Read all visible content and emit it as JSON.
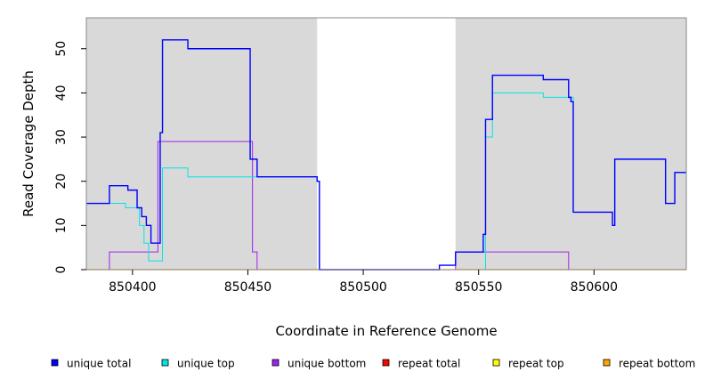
{
  "chart_data": {
    "type": "line",
    "line_style": "step",
    "xlabel": "Coordinate in Reference Genome",
    "ylabel": "Read Coverage Depth",
    "xlim": [
      850380,
      850640
    ],
    "ylim": [
      0,
      57
    ],
    "x_ticks": [
      850400,
      850450,
      850500,
      850550,
      850600
    ],
    "y_ticks": [
      0,
      10,
      20,
      30,
      40,
      50
    ],
    "grid": false,
    "plot_background": "#d9d9d9",
    "highlight_background": "#ffffff",
    "highlight_range": [
      850480,
      850540
    ],
    "legend_position": "bottom",
    "series": [
      {
        "name": "unique total",
        "color": "#0000ff",
        "x": [
          850380,
          850390,
          850398,
          850402,
          850404,
          850405,
          850406,
          850407,
          850408,
          850411,
          850412,
          850413,
          850424,
          850451,
          850452,
          850454,
          850480,
          850481,
          850533,
          850540,
          850552,
          850553,
          850555,
          850556,
          850578,
          850589,
          850590,
          850591,
          850608,
          850609,
          850623,
          850631,
          850635,
          850640
        ],
        "y": [
          15,
          19,
          18,
          14,
          12,
          12,
          10,
          10,
          6,
          6,
          31,
          52,
          50,
          25,
          25,
          21,
          20,
          0,
          1,
          4,
          8,
          34,
          34,
          44,
          43,
          39,
          38,
          13,
          10,
          25,
          25,
          15,
          22,
          22
        ]
      },
      {
        "name": "unique top",
        "color": "#00e5e5",
        "x": [
          850380,
          850389,
          850393,
          850397,
          850399,
          850401,
          850403,
          850405,
          850407,
          850410,
          850413,
          850424,
          850452,
          850454,
          850480,
          850481,
          850540,
          850553,
          850555,
          850556,
          850578,
          850589,
          850591,
          850608,
          850609,
          850623,
          850631,
          850635,
          850640
        ],
        "y": [
          15,
          15,
          15,
          14,
          14,
          14,
          10,
          6,
          2,
          2,
          23,
          21,
          21,
          21,
          20,
          0,
          0,
          30,
          30,
          40,
          39,
          39,
          13,
          10,
          25,
          25,
          15,
          22,
          22
        ]
      },
      {
        "name": "unique bottom",
        "color": "#a020f0",
        "x": [
          850380,
          850390,
          850411,
          850452,
          850454,
          850540,
          850589,
          850640
        ],
        "y": [
          0,
          4,
          29,
          4,
          0,
          4,
          0,
          0
        ]
      },
      {
        "name": "repeat total",
        "color": "#ff0000",
        "x": [
          850380,
          850640
        ],
        "y": [
          0,
          0
        ]
      },
      {
        "name": "repeat top",
        "color": "#ffff00",
        "x": [
          850380,
          850640
        ],
        "y": [
          0,
          0
        ]
      },
      {
        "name": "repeat bottom",
        "color": "#ffa500",
        "x": [
          850380,
          850640
        ],
        "y": [
          0,
          0
        ]
      }
    ]
  }
}
